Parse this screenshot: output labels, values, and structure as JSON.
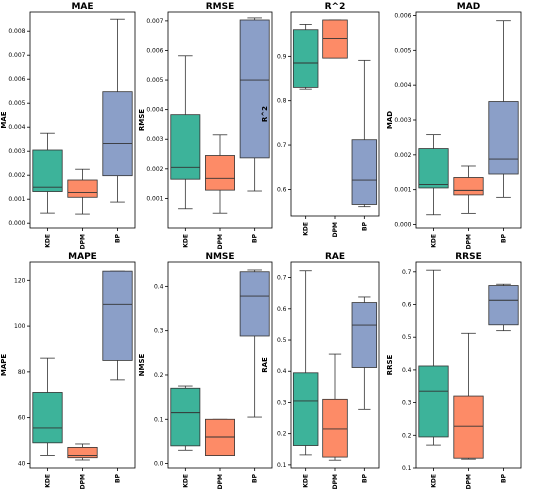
{
  "chart_data": [
    {
      "type": "box",
      "title": "MAE",
      "ylabel": "MAE",
      "categories": [
        "KDE",
        "DPM",
        "BP"
      ],
      "colors": [
        "#3db39a",
        "#fd8b67",
        "#8b9fc8"
      ],
      "ylim": [
        -0.0002,
        0.0088
      ],
      "yticks": [
        0.0,
        0.001,
        0.002,
        0.003,
        0.004,
        0.005,
        0.006,
        0.007,
        0.008
      ],
      "ytick_labels": [
        "0.000",
        "0.001",
        "0.002",
        "0.003",
        "0.004",
        "0.005",
        "0.006",
        "0.007",
        "0.008"
      ],
      "boxes": [
        {
          "min": 0.00042,
          "q1": 0.00132,
          "median": 0.0015,
          "q3": 0.00305,
          "max": 0.00375
        },
        {
          "min": 0.00038,
          "q1": 0.00108,
          "median": 0.00128,
          "q3": 0.0018,
          "max": 0.00225
        },
        {
          "min": 0.00088,
          "q1": 0.00198,
          "median": 0.00332,
          "q3": 0.00548,
          "max": 0.0085
        }
      ]
    },
    {
      "type": "box",
      "title": "RMSE",
      "ylabel": "RMSE",
      "categories": [
        "KDE",
        "DPM",
        "BP"
      ],
      "colors": [
        "#3db39a",
        "#fd8b67",
        "#8b9fc8"
      ],
      "ylim": [
        0.0,
        0.0073
      ],
      "yticks": [
        0.001,
        0.002,
        0.003,
        0.004,
        0.005,
        0.006,
        0.007
      ],
      "ytick_labels": [
        "0.001",
        "0.002",
        "0.003",
        "0.004",
        "0.005",
        "0.006",
        "0.007"
      ],
      "boxes": [
        {
          "min": 0.00065,
          "q1": 0.00165,
          "median": 0.00205,
          "q3": 0.00383,
          "max": 0.00582
        },
        {
          "min": 0.0005,
          "q1": 0.00128,
          "median": 0.00168,
          "q3": 0.00245,
          "max": 0.00315
        },
        {
          "min": 0.00125,
          "q1": 0.00237,
          "median": 0.005,
          "q3": 0.00703,
          "max": 0.0071
        }
      ]
    },
    {
      "type": "box",
      "title": "R^2",
      "ylabel": "R^2",
      "categories": [
        "KDE",
        "DPM",
        "BP"
      ],
      "colors": [
        "#3db39a",
        "#fd8b67",
        "#8b9fc8"
      ],
      "ylim": [
        0.54,
        1.0
      ],
      "yticks": [
        0.6,
        0.7,
        0.8,
        0.9
      ],
      "ytick_labels": [
        "0.6",
        "0.7",
        "0.8",
        "0.9"
      ],
      "boxes": [
        {
          "min": 0.826,
          "q1": 0.83,
          "median": 0.885,
          "q3": 0.96,
          "max": 0.972
        },
        {
          "min": 0.896,
          "q1": 0.896,
          "median": 0.94,
          "q3": 0.982,
          "max": 0.982
        },
        {
          "min": 0.561,
          "q1": 0.566,
          "median": 0.621,
          "q3": 0.712,
          "max": 0.891
        }
      ]
    },
    {
      "type": "box",
      "title": "MAD",
      "ylabel": "MAD",
      "categories": [
        "KDE",
        "DPM",
        "BP"
      ],
      "colors": [
        "#3db39a",
        "#fd8b67",
        "#8b9fc8"
      ],
      "ylim": [
        -0.0001,
        0.0061
      ],
      "yticks": [
        0.0,
        0.001,
        0.002,
        0.003,
        0.004,
        0.005,
        0.006
      ],
      "ytick_labels": [
        "0.000",
        "0.001",
        "0.002",
        "0.003",
        "0.004",
        "0.005",
        "0.006"
      ],
      "boxes": [
        {
          "min": 0.00028,
          "q1": 0.00105,
          "median": 0.00115,
          "q3": 0.00218,
          "max": 0.00258
        },
        {
          "min": 0.00032,
          "q1": 0.00085,
          "median": 0.00098,
          "q3": 0.00135,
          "max": 0.00168
        },
        {
          "min": 0.00078,
          "q1": 0.00145,
          "median": 0.00188,
          "q3": 0.00353,
          "max": 0.00585
        }
      ]
    },
    {
      "type": "box",
      "title": "MAPE",
      "ylabel": "MAPE",
      "categories": [
        "KDE",
        "DPM",
        "BP"
      ],
      "colors": [
        "#3db39a",
        "#fd8b67",
        "#8b9fc8"
      ],
      "ylim": [
        38,
        128
      ],
      "yticks": [
        40,
        60,
        80,
        100,
        120
      ],
      "ytick_labels": [
        "40",
        "60",
        "80",
        "100",
        "120"
      ],
      "boxes": [
        {
          "min": 43.5,
          "q1": 49.0,
          "median": 55.5,
          "q3": 71.0,
          "max": 86.0
        },
        {
          "min": 41.5,
          "q1": 42.5,
          "median": 43.5,
          "q3": 47.0,
          "max": 48.5
        },
        {
          "min": 76.5,
          "q1": 85.0,
          "median": 109.5,
          "q3": 124.0,
          "max": 124.0
        }
      ]
    },
    {
      "type": "box",
      "title": "NMSE",
      "ylabel": "NMSE",
      "categories": [
        "KDE",
        "DPM",
        "BP"
      ],
      "colors": [
        "#3db39a",
        "#fd8b67",
        "#8b9fc8"
      ],
      "ylim": [
        -0.01,
        0.455
      ],
      "yticks": [
        0.0,
        0.1,
        0.2,
        0.3,
        0.4
      ],
      "ytick_labels": [
        "0.0",
        "0.1",
        "0.2",
        "0.3",
        "0.4"
      ],
      "boxes": [
        {
          "min": 0.03,
          "q1": 0.04,
          "median": 0.115,
          "q3": 0.17,
          "max": 0.175
        },
        {
          "min": 0.018,
          "q1": 0.018,
          "median": 0.06,
          "q3": 0.1,
          "max": 0.1
        },
        {
          "min": 0.105,
          "q1": 0.288,
          "median": 0.378,
          "q3": 0.433,
          "max": 0.437
        }
      ]
    },
    {
      "type": "box",
      "title": "RAE",
      "ylabel": "RAE",
      "categories": [
        "KDE",
        "DPM",
        "BP"
      ],
      "colors": [
        "#3db39a",
        "#fd8b67",
        "#8b9fc8"
      ],
      "ylim": [
        0.09,
        0.75
      ],
      "yticks": [
        0.1,
        0.2,
        0.3,
        0.4,
        0.5,
        0.6,
        0.7
      ],
      "ytick_labels": [
        "0.1",
        "0.2",
        "0.3",
        "0.4",
        "0.5",
        "0.6",
        "0.7"
      ],
      "boxes": [
        {
          "min": 0.132,
          "q1": 0.162,
          "median": 0.305,
          "q3": 0.395,
          "max": 0.722
        },
        {
          "min": 0.115,
          "q1": 0.125,
          "median": 0.215,
          "q3": 0.31,
          "max": 0.455
        },
        {
          "min": 0.278,
          "q1": 0.412,
          "median": 0.548,
          "q3": 0.62,
          "max": 0.638
        }
      ]
    },
    {
      "type": "box",
      "title": "RRSE",
      "ylabel": "RRSE",
      "categories": [
        "KDE",
        "DPM",
        "BP"
      ],
      "colors": [
        "#3db39a",
        "#fd8b67",
        "#8b9fc8"
      ],
      "ylim": [
        0.1,
        0.73
      ],
      "yticks": [
        0.1,
        0.2,
        0.3,
        0.4,
        0.5,
        0.6,
        0.7
      ],
      "ytick_labels": [
        "0.1",
        "0.2",
        "0.3",
        "0.4",
        "0.5",
        "0.6",
        "0.7"
      ],
      "boxes": [
        {
          "min": 0.17,
          "q1": 0.195,
          "median": 0.335,
          "q3": 0.412,
          "max": 0.705
        },
        {
          "min": 0.127,
          "q1": 0.13,
          "median": 0.228,
          "q3": 0.32,
          "max": 0.512
        },
        {
          "min": 0.52,
          "q1": 0.538,
          "median": 0.613,
          "q3": 0.658,
          "max": 0.662
        }
      ]
    }
  ]
}
